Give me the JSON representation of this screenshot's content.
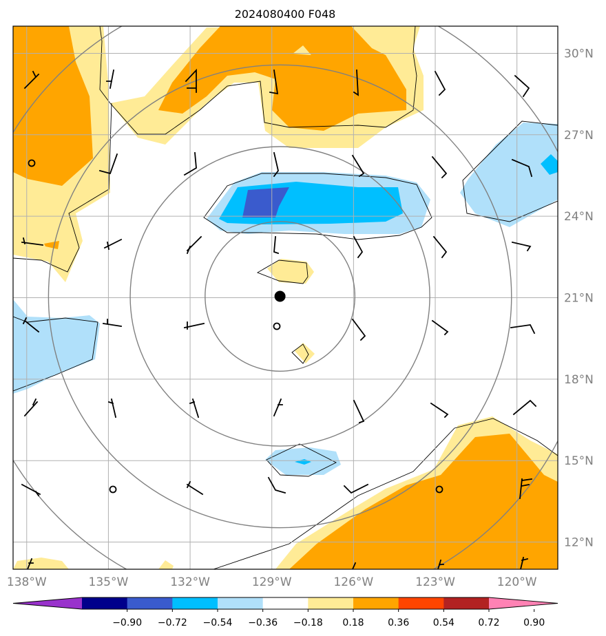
{
  "title": "2024080400 F048",
  "map": {
    "lon_range": [
      -138.5,
      -118.5
    ],
    "lat_range": [
      11,
      31
    ],
    "lat_ticks": [
      {
        "lat": 30,
        "label": "30°N"
      },
      {
        "lat": 27,
        "label": "27°N"
      },
      {
        "lat": 24,
        "label": "24°N"
      },
      {
        "lat": 21,
        "label": "21°N"
      },
      {
        "lat": 18,
        "label": "18°N"
      },
      {
        "lat": 15,
        "label": "15°N"
      },
      {
        "lat": 12,
        "label": "12°N"
      }
    ],
    "lon_ticks": [
      {
        "lon": -138,
        "label": "138°W"
      },
      {
        "lon": -135,
        "label": "135°W"
      },
      {
        "lon": -132,
        "label": "132°W"
      },
      {
        "lon": -129,
        "label": "129°W"
      },
      {
        "lon": -126,
        "label": "126°W"
      },
      {
        "lon": -123,
        "label": "123°W"
      },
      {
        "lon": -120,
        "label": "120°W"
      }
    ],
    "storm_center": {
      "lon": -128.7,
      "lat": 21.05
    },
    "range_ring_radii_deg": [
      2.75,
      5.5,
      8.5,
      11.5
    ],
    "grid": true
  },
  "colorbar": {
    "colors": [
      "#9932cc",
      "#00008b",
      "#3a5bcd",
      "#00bfff",
      "#b0e0fa",
      "#ffffff",
      "#ffeb96",
      "#ffa500",
      "#ff4500",
      "#b22222",
      "#ff82b4"
    ],
    "ticks": [
      "−0.90",
      "−0.72",
      "−0.54",
      "−0.36",
      "−0.18",
      "0.18",
      "0.36",
      "0.54",
      "0.72",
      "0.90"
    ]
  }
}
